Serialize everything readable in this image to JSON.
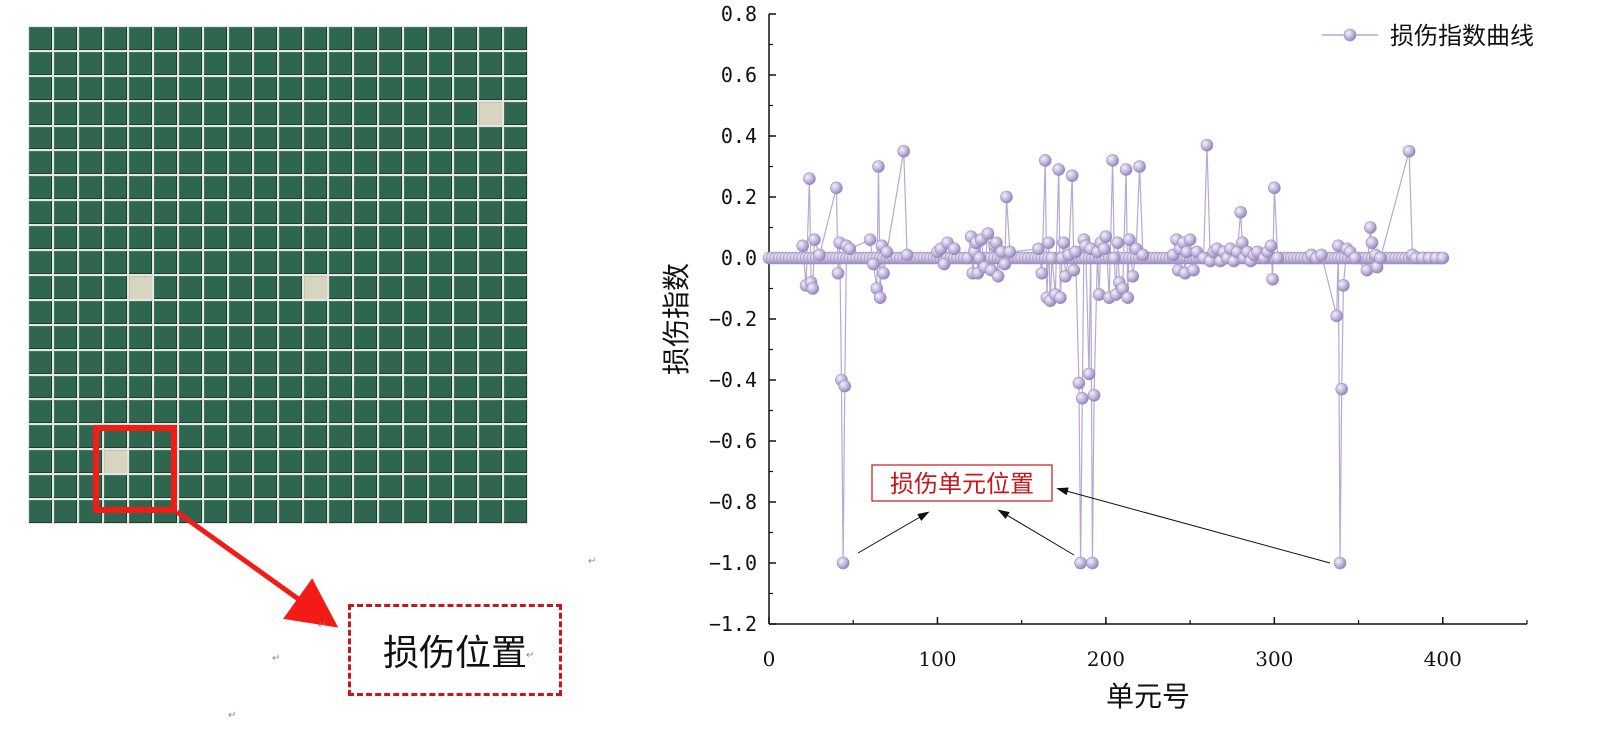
{
  "left_panel": {
    "grid_rows": 20,
    "grid_cols": 20,
    "damaged_cells": [
      [
        3,
        18
      ],
      [
        10,
        4
      ],
      [
        10,
        11
      ],
      [
        17,
        3
      ]
    ],
    "callout_label": "损伤位置",
    "colors": {
      "element": "#2f6650",
      "damaged": "#d7d5c0",
      "highlight": "#f21b16"
    },
    "marks": [
      "↵",
      "↵",
      "↵",
      "↵",
      "↵"
    ]
  },
  "chart_data": {
    "type": "line",
    "ylabel": "损伤指数",
    "xlabel": "单元号",
    "xlim": [
      0,
      450
    ],
    "ylim": [
      -1.2,
      0.8
    ],
    "x_ticks": [
      0,
      100,
      200,
      300,
      400
    ],
    "x_tick_labels": [
      "0",
      "100",
      "200",
      "300",
      "400"
    ],
    "y_ticks": [
      0.8,
      0.6,
      0.4,
      0.2,
      0.0,
      -0.2,
      -0.4,
      -0.6,
      -0.8,
      -1.0,
      -1.2
    ],
    "y_tick_labels": [
      "0.8",
      "0.6",
      "0.4",
      "0.2",
      "0.0",
      "−0.2",
      "−0.4",
      "−0.6",
      "−0.8",
      "−1.0",
      "−1.2"
    ],
    "legend": {
      "label": "损伤指数曲线",
      "placement": "top-right"
    },
    "annotation": {
      "text": "损伤单元位置",
      "points_to": [
        [
          44,
          -1.0
        ],
        [
          185,
          -1.0
        ],
        [
          192,
          -1.0
        ],
        [
          339,
          -1.0
        ]
      ]
    },
    "series_color": "#b7a9d1",
    "series": [
      {
        "name": "损伤指数曲线",
        "points": [
          [
            20,
            0.04
          ],
          [
            22,
            -0.09
          ],
          [
            24,
            0.26
          ],
          [
            25,
            -0.08
          ],
          [
            26,
            -0.1
          ],
          [
            27,
            0.06
          ],
          [
            30,
            0.01
          ],
          [
            40,
            0.23
          ],
          [
            41,
            -0.05
          ],
          [
            42,
            0.05
          ],
          [
            43,
            -0.4
          ],
          [
            44,
            -1.0
          ],
          [
            45,
            -0.42
          ],
          [
            46,
            0.04
          ],
          [
            48,
            0.03
          ],
          [
            60,
            0.06
          ],
          [
            62,
            -0.02
          ],
          [
            64,
            -0.1
          ],
          [
            65,
            0.3
          ],
          [
            66,
            -0.13
          ],
          [
            67,
            0.04
          ],
          [
            68,
            -0.05
          ],
          [
            70,
            0.02
          ],
          [
            80,
            0.35
          ],
          [
            82,
            0.01
          ],
          [
            100,
            0.02
          ],
          [
            102,
            0.03
          ],
          [
            104,
            -0.02
          ],
          [
            106,
            0.05
          ],
          [
            110,
            0.03
          ],
          [
            118,
            0.0
          ],
          [
            120,
            0.07
          ],
          [
            121,
            -0.05
          ],
          [
            122,
            0.02
          ],
          [
            123,
            0.05
          ],
          [
            124,
            -0.05
          ],
          [
            125,
            0.0
          ],
          [
            126,
            0.06
          ],
          [
            128,
            -0.03
          ],
          [
            130,
            0.08
          ],
          [
            132,
            -0.04
          ],
          [
            134,
            0.04
          ],
          [
            135,
            0.05
          ],
          [
            136,
            -0.06
          ],
          [
            138,
            0.02
          ],
          [
            140,
            -0.02
          ],
          [
            141,
            0.2
          ],
          [
            143,
            0.02
          ],
          [
            160,
            0.03
          ],
          [
            162,
            -0.05
          ],
          [
            164,
            0.32
          ],
          [
            165,
            -0.13
          ],
          [
            166,
            0.05
          ],
          [
            167,
            -0.14
          ],
          [
            168,
            0.0
          ],
          [
            170,
            -0.12
          ],
          [
            172,
            0.29
          ],
          [
            173,
            -0.13
          ],
          [
            174,
            0.0
          ],
          [
            175,
            0.05
          ],
          [
            176,
            -0.06
          ],
          [
            178,
            0.01
          ],
          [
            180,
            0.27
          ],
          [
            181,
            -0.04
          ],
          [
            182,
            0.02
          ],
          [
            184,
            -0.41
          ],
          [
            185,
            -1.0
          ],
          [
            186,
            -0.46
          ],
          [
            187,
            0.06
          ],
          [
            188,
            0.04
          ],
          [
            190,
            -0.38
          ],
          [
            191,
            0.03
          ],
          [
            192,
            -1.0
          ],
          [
            193,
            -0.45
          ],
          [
            195,
            0.02
          ],
          [
            196,
            -0.12
          ],
          [
            197,
            0.05
          ],
          [
            199,
            0.03
          ],
          [
            200,
            0.07
          ],
          [
            202,
            -0.13
          ],
          [
            204,
            0.32
          ],
          [
            205,
            0.0
          ],
          [
            206,
            -0.12
          ],
          [
            207,
            0.05
          ],
          [
            208,
            -0.08
          ],
          [
            210,
            -0.1
          ],
          [
            212,
            0.29
          ],
          [
            213,
            -0.13
          ],
          [
            214,
            0.06
          ],
          [
            216,
            -0.06
          ],
          [
            218,
            0.03
          ],
          [
            220,
            0.3
          ],
          [
            222,
            0.01
          ],
          [
            240,
            0.01
          ],
          [
            242,
            0.06
          ],
          [
            243,
            -0.04
          ],
          [
            244,
            0.03
          ],
          [
            246,
            0.05
          ],
          [
            247,
            -0.05
          ],
          [
            248,
            0.02
          ],
          [
            250,
            0.06
          ],
          [
            252,
            -0.04
          ],
          [
            254,
            0.02
          ],
          [
            258,
            0.0
          ],
          [
            260,
            0.37
          ],
          [
            262,
            -0.01
          ],
          [
            264,
            0.02
          ],
          [
            266,
            0.03
          ],
          [
            268,
            -0.01
          ],
          [
            270,
            0.02
          ],
          [
            272,
            0.0
          ],
          [
            274,
            0.03
          ],
          [
            276,
            -0.01
          ],
          [
            278,
            0.02
          ],
          [
            280,
            0.15
          ],
          [
            281,
            0.05
          ],
          [
            282,
            0.0
          ],
          [
            284,
            0.02
          ],
          [
            286,
            -0.01
          ],
          [
            288,
            0.01
          ],
          [
            290,
            0.02
          ],
          [
            294,
            0.0
          ],
          [
            296,
            0.02
          ],
          [
            298,
            0.04
          ],
          [
            299,
            -0.07
          ],
          [
            300,
            0.23
          ],
          [
            302,
            0.0
          ],
          [
            320,
            0.0
          ],
          [
            322,
            0.01
          ],
          [
            325,
            0.0
          ],
          [
            328,
            0.01
          ],
          [
            337,
            -0.19
          ],
          [
            338,
            0.04
          ],
          [
            339,
            -1.0
          ],
          [
            340,
            -0.43
          ],
          [
            341,
            -0.09
          ],
          [
            343,
            0.03
          ],
          [
            345,
            0.02
          ],
          [
            348,
            0.0
          ],
          [
            355,
            -0.04
          ],
          [
            357,
            0.1
          ],
          [
            358,
            0.05
          ],
          [
            360,
            0.01
          ],
          [
            361,
            -0.03
          ],
          [
            363,
            0.0
          ],
          [
            380,
            0.35
          ],
          [
            382,
            0.01
          ],
          [
            384,
            0.0
          ],
          [
            388,
            0.0
          ],
          [
            392,
            0.0
          ],
          [
            396,
            0.0
          ],
          [
            400,
            0.0
          ]
        ]
      }
    ]
  }
}
